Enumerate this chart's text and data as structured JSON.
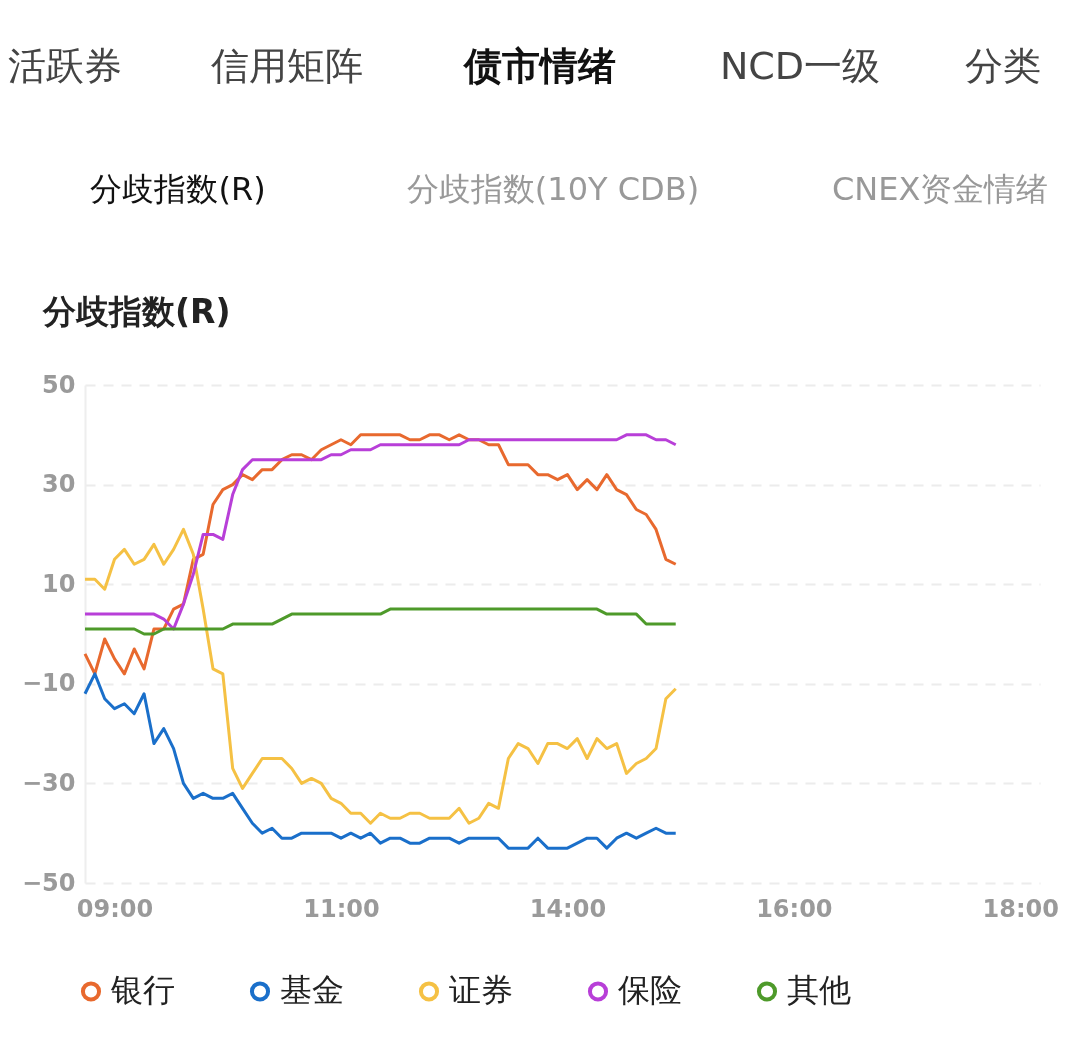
{
  "chart_data": {
    "type": "line",
    "title": "分歧指数(R)",
    "annotations": [
      "活跃券",
      "信用矩阵",
      "债市情绪",
      "NCD一级",
      "分类",
      "分歧指数(R)",
      "分歧指数(10Y CDB)",
      "CNEX资金情绪"
    ],
    "categories": [
      null,
      null,
      null,
      "09:00",
      null,
      null,
      null,
      null,
      null,
      null,
      null,
      null,
      null,
      null,
      null,
      null,
      null,
      null,
      null,
      null,
      null,
      null,
      null,
      null,
      null,
      null,
      "11:00",
      null,
      null,
      null,
      null,
      null,
      null,
      null,
      null,
      null,
      null,
      null,
      null,
      null,
      null,
      null,
      null,
      null,
      null,
      null,
      null,
      null,
      null,
      "14:00",
      null,
      null,
      null,
      null,
      null,
      null,
      null,
      null,
      null,
      null,
      null,
      null,
      null,
      null,
      null,
      null,
      null,
      null,
      null,
      null,
      null,
      null,
      "16:00",
      null,
      null,
      null,
      null,
      null,
      null,
      null,
      null,
      null,
      null,
      null,
      null,
      null,
      null,
      null,
      null,
      null,
      null,
      null,
      null,
      null,
      null,
      "18:00",
      null,
      null
    ],
    "series": [
      {
        "name": "银行",
        "color": "#e8692e",
        "values": [
          -4,
          -8,
          -1,
          -5,
          -8,
          -3,
          -7,
          1,
          1,
          5,
          6,
          15,
          16,
          26,
          29,
          30,
          32,
          31,
          33,
          33,
          35,
          36,
          36,
          35,
          37,
          38,
          39,
          38,
          40,
          40,
          40,
          40,
          40,
          39,
          39,
          40,
          40,
          39,
          40,
          39,
          39,
          38,
          38,
          34,
          34,
          34,
          32,
          32,
          31,
          32,
          29,
          31,
          29,
          32,
          29,
          28,
          25,
          24,
          21,
          15,
          14,
          null,
          null,
          null,
          null,
          null,
          null,
          null,
          null,
          null,
          null,
          null,
          null,
          null,
          null,
          null,
          null,
          null,
          null,
          null,
          null,
          null,
          null,
          null,
          null,
          null,
          null,
          null,
          null,
          null,
          null,
          null,
          null,
          null,
          null,
          null,
          null,
          null
        ]
      },
      {
        "name": "基金",
        "color": "#1a6fca",
        "values": [
          -12,
          -8,
          -13,
          -15,
          -14,
          -16,
          -12,
          -22,
          -19,
          -23,
          -30,
          -33,
          -32,
          -33,
          -33,
          -32,
          -35,
          -38,
          -40,
          -39,
          -41,
          -41,
          -40,
          -40,
          -40,
          -40,
          -41,
          -40,
          -41,
          -40,
          -42,
          -41,
          -41,
          -42,
          -42,
          -41,
          -41,
          -41,
          -42,
          -41,
          -41,
          -41,
          -41,
          -43,
          -43,
          -43,
          -41,
          -43,
          -43,
          -43,
          -42,
          -41,
          -41,
          -43,
          -41,
          -40,
          -41,
          -40,
          -39,
          -40,
          -40,
          null,
          null,
          null,
          null,
          null,
          null,
          null,
          null,
          null,
          null,
          null,
          null,
          null,
          null,
          null,
          null,
          null,
          null,
          null,
          null,
          null,
          null,
          null,
          null,
          null,
          null,
          null,
          null,
          null,
          null,
          null,
          null,
          null,
          null,
          null,
          null,
          null
        ]
      },
      {
        "name": "证券",
        "color": "#f5c144",
        "values": [
          11,
          11,
          9,
          15,
          17,
          14,
          15,
          18,
          14,
          17,
          21,
          16,
          5,
          -7,
          -8,
          -27,
          -31,
          -28,
          -25,
          -25,
          -25,
          -27,
          -30,
          -29,
          -30,
          -33,
          -34,
          -36,
          -36,
          -38,
          -36,
          -37,
          -37,
          -36,
          -36,
          -37,
          -37,
          -37,
          -35,
          -38,
          -37,
          -34,
          -35,
          -25,
          -22,
          -23,
          -26,
          -22,
          -22,
          -23,
          -21,
          -25,
          -21,
          -23,
          -22,
          -28,
          -26,
          -25,
          -23,
          -13,
          -11,
          null,
          null,
          null,
          null,
          null,
          null,
          null,
          null,
          null,
          null,
          null,
          null,
          null,
          null,
          null,
          null,
          null,
          null,
          null,
          null,
          null,
          null,
          null,
          null,
          null,
          null,
          null,
          null,
          null,
          null,
          null,
          null,
          null,
          null,
          null,
          null,
          null
        ]
      },
      {
        "name": "保险",
        "color": "#b83fd8",
        "values": [
          4,
          4,
          4,
          4,
          4,
          4,
          4,
          4,
          3,
          1,
          6,
          12,
          20,
          20,
          19,
          28,
          33,
          35,
          35,
          35,
          35,
          35,
          35,
          35,
          35,
          36,
          36,
          37,
          37,
          37,
          38,
          38,
          38,
          38,
          38,
          38,
          38,
          38,
          38,
          39,
          39,
          39,
          39,
          39,
          39,
          39,
          39,
          39,
          39,
          39,
          39,
          39,
          39,
          39,
          39,
          40,
          40,
          40,
          39,
          39,
          38,
          null,
          null,
          null,
          null,
          null,
          null,
          null,
          null,
          null,
          null,
          null,
          null,
          null,
          null,
          null,
          null,
          null,
          null,
          null,
          null,
          null,
          null,
          null,
          null,
          null,
          null,
          null,
          null,
          null,
          null,
          null,
          null,
          null,
          null,
          null,
          null,
          null
        ]
      },
      {
        "name": "其他",
        "color": "#4e9a2a",
        "values": [
          1,
          1,
          1,
          1,
          1,
          1,
          0,
          0,
          1,
          1,
          1,
          1,
          1,
          1,
          1,
          2,
          2,
          2,
          2,
          2,
          3,
          4,
          4,
          4,
          4,
          4,
          4,
          4,
          4,
          4,
          4,
          5,
          5,
          5,
          5,
          5,
          5,
          5,
          5,
          5,
          5,
          5,
          5,
          5,
          5,
          5,
          5,
          5,
          5,
          5,
          5,
          5,
          5,
          4,
          4,
          4,
          4,
          2,
          2,
          2,
          2,
          null,
          null,
          null,
          null,
          null,
          null,
          null,
          null,
          null,
          null,
          null,
          null,
          null,
          null,
          null,
          null,
          null,
          null,
          null,
          null,
          null,
          null,
          null,
          null,
          null,
          null,
          null,
          null,
          null,
          null,
          null,
          null,
          null,
          null,
          null,
          null,
          null
        ]
      }
    ],
    "ylim": [
      -50,
      50
    ],
    "yticks": [
      -50,
      -30,
      -10,
      10,
      30,
      50
    ],
    "grid": "y",
    "legend": "bottom",
    "line_style": "solid"
  }
}
